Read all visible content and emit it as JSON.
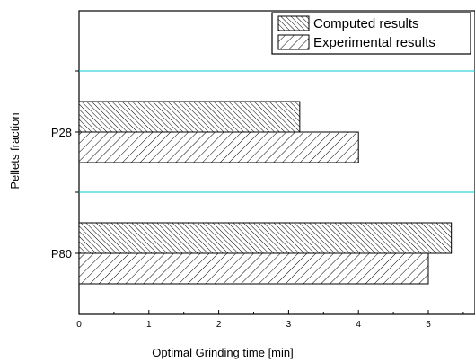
{
  "chart_data": {
    "type": "bar",
    "orientation": "horizontal",
    "categories": [
      "P80",
      "P28"
    ],
    "series": [
      {
        "name": "Computed results",
        "values": [
          5.33,
          3.16
        ],
        "pattern": "backslash-hatch-dense"
      },
      {
        "name": "Experimental results",
        "values": [
          5.0,
          4.0
        ],
        "pattern": "slash-hatch"
      }
    ],
    "xlabel": "Optimal Grinding time [min]",
    "ylabel": "Pellets fraction",
    "xlim": [
      0,
      5.5
    ],
    "xticks": [
      "0",
      "1",
      "2",
      "3",
      "4",
      "5"
    ],
    "legend_position": "top-right",
    "separator_color": "#00c8d2",
    "grid": false
  }
}
